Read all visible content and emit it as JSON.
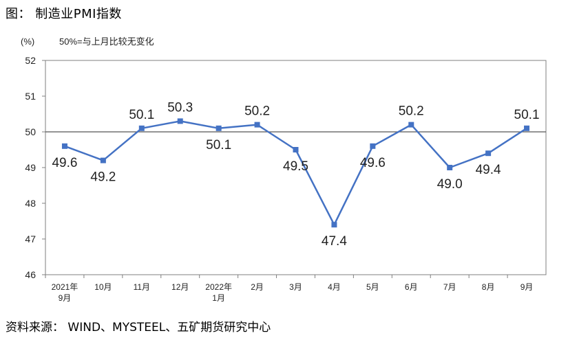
{
  "figure_title": "图： 制造业PMI指数",
  "source": "资料来源： WIND、MYSTEEL、五矿期货研究中心",
  "chart_data": {
    "type": "line",
    "unit_label": "(%)",
    "note": "50%=与上月比较无变化",
    "reference_line": 50,
    "ylim": [
      46,
      52
    ],
    "yticks": [
      46,
      47,
      48,
      49,
      50,
      51,
      52
    ],
    "categories": [
      [
        "2021年",
        "9月"
      ],
      [
        "10月"
      ],
      [
        "11月"
      ],
      [
        "12月"
      ],
      [
        "2022年",
        "1月"
      ],
      [
        "2月"
      ],
      [
        "3月"
      ],
      [
        "4月"
      ],
      [
        "5月"
      ],
      [
        "6月"
      ],
      [
        "7月"
      ],
      [
        "8月"
      ],
      [
        "9月"
      ]
    ],
    "series": [
      {
        "values": [
          49.6,
          49.2,
          50.1,
          50.3,
          50.1,
          50.2,
          49.5,
          47.4,
          49.6,
          50.2,
          49.0,
          49.4,
          50.1
        ],
        "labels": [
          "49.6",
          "49.2",
          "50.1",
          "50.3",
          "50.1",
          "50.2",
          "49.5",
          "47.4",
          "49.6",
          "50.2",
          "49.0",
          "49.4",
          "50.1"
        ],
        "color": "#4472C4"
      }
    ],
    "grid": false,
    "legend": "none"
  }
}
